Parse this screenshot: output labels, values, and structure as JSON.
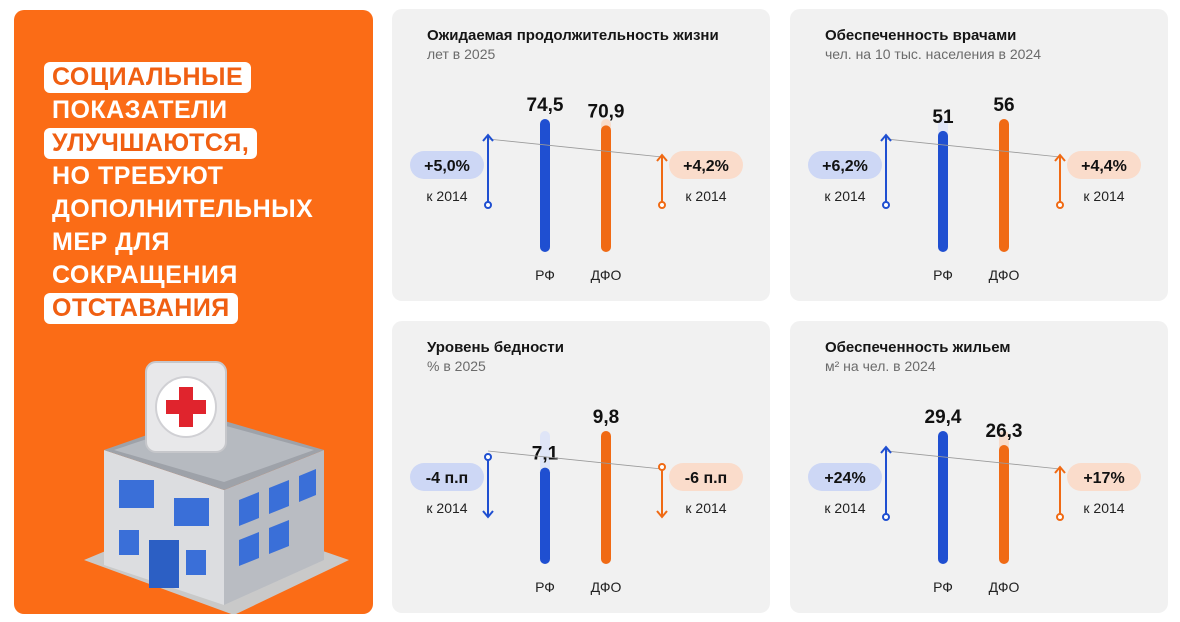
{
  "headline": {
    "lines": [
      {
        "text": "СОЦИАЛЬНЫЕ",
        "highlight": true
      },
      {
        "text": "ПОКАЗАТЕЛИ",
        "highlight": false
      },
      {
        "text": "УЛУЧШАЮТСЯ,",
        "highlight": true
      },
      {
        "text": "НО ТРЕБУЮТ",
        "highlight": false
      },
      {
        "text": "ДОПОЛНИТЕЛЬНЫХ",
        "highlight": false
      },
      {
        "text": "МЕР ДЛЯ",
        "highlight": false
      },
      {
        "text": "СОКРАЩЕНИЯ",
        "highlight": false
      },
      {
        "text": "ОТСТАВАНИЯ",
        "highlight": true
      }
    ]
  },
  "colors": {
    "rf": "#1f4fd1",
    "dfo": "#f06a14",
    "rf_badge": "#cdd7f5",
    "dfo_badge": "#fadccb",
    "panel": "#fb6c16"
  },
  "chart_data": [
    {
      "type": "bar",
      "title": "Ожидаемая продолжительность жизни",
      "subtitle": "лет в 2025",
      "categories": [
        "РФ",
        "ДФО"
      ],
      "values": [
        74.5,
        70.9
      ],
      "value_labels": [
        "74,5",
        "70,9"
      ],
      "change_rf": "+5,0%",
      "change_dfo": "+4,2%",
      "change_label": "к 2014",
      "direction_rf": "up",
      "direction_dfo": "up"
    },
    {
      "type": "bar",
      "title": "Обеспеченность врачами",
      "subtitle": "чел. на 10 тыс. населения в 2024",
      "categories": [
        "РФ",
        "ДФО"
      ],
      "values": [
        51,
        56
      ],
      "value_labels": [
        "51",
        "56"
      ],
      "change_rf": "+6,2%",
      "change_dfo": "+4,4%",
      "change_label": "к 2014",
      "direction_rf": "up",
      "direction_dfo": "up"
    },
    {
      "type": "bar",
      "title": "Уровень бедности",
      "subtitle": "% в 2025",
      "categories": [
        "РФ",
        "ДФО"
      ],
      "values": [
        7.1,
        9.8
      ],
      "value_labels": [
        "7,1",
        "9,8"
      ],
      "change_rf": "-4 п.п",
      "change_dfo": "-6 п.п",
      "change_label": "к 2014",
      "direction_rf": "down",
      "direction_dfo": "down"
    },
    {
      "type": "bar",
      "title": "Обеспеченность жильем",
      "subtitle": "м² на чел. в 2024",
      "categories": [
        "РФ",
        "ДФО"
      ],
      "values": [
        29.4,
        26.3
      ],
      "value_labels": [
        "29,4",
        "26,3"
      ],
      "change_rf": "+24%",
      "change_dfo": "+17%",
      "change_label": "к 2014",
      "direction_rf": "up",
      "direction_dfo": "up"
    }
  ]
}
